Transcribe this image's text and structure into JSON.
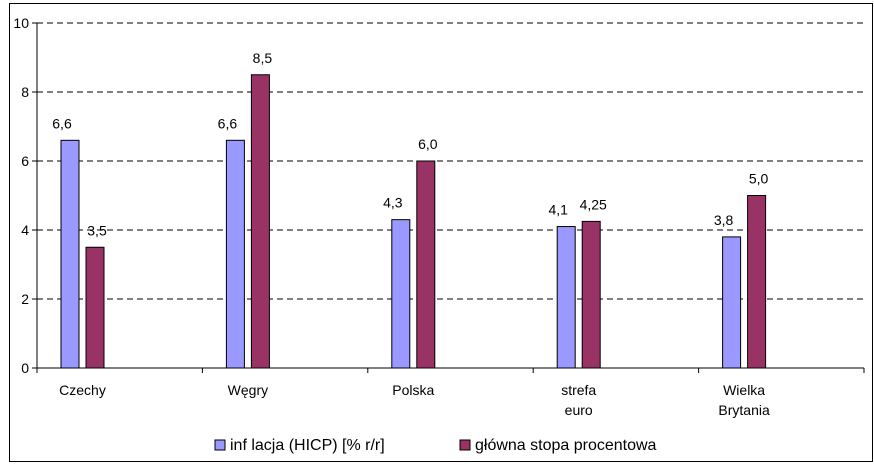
{
  "chart_data": {
    "type": "bar",
    "categories": [
      [
        "Czechy"
      ],
      [
        "Węgry"
      ],
      [
        "Polska"
      ],
      [
        "strefa",
        "euro"
      ],
      [
        "Wielka",
        "Brytania"
      ]
    ],
    "series": [
      {
        "name": "inf lacja (HICP) [% r/r]",
        "values": [
          6.6,
          6.6,
          4.3,
          4.1,
          3.8
        ],
        "labels": [
          "6,6",
          "6,6",
          "4,3",
          "4,1",
          "3,8"
        ],
        "color": "#9999ff"
      },
      {
        "name": "główna stopa procentowa",
        "values": [
          3.5,
          8.5,
          6.0,
          4.25,
          5.0
        ],
        "labels": [
          "3,5",
          "8,5",
          "6,0",
          "4,25",
          "5,0"
        ],
        "color": "#993366"
      }
    ],
    "yticks": [
      "0",
      "2",
      "4",
      "6",
      "8",
      "10"
    ],
    "ylim": [
      0,
      10
    ],
    "grid": "dashed horizontal",
    "legend": "bottom"
  }
}
